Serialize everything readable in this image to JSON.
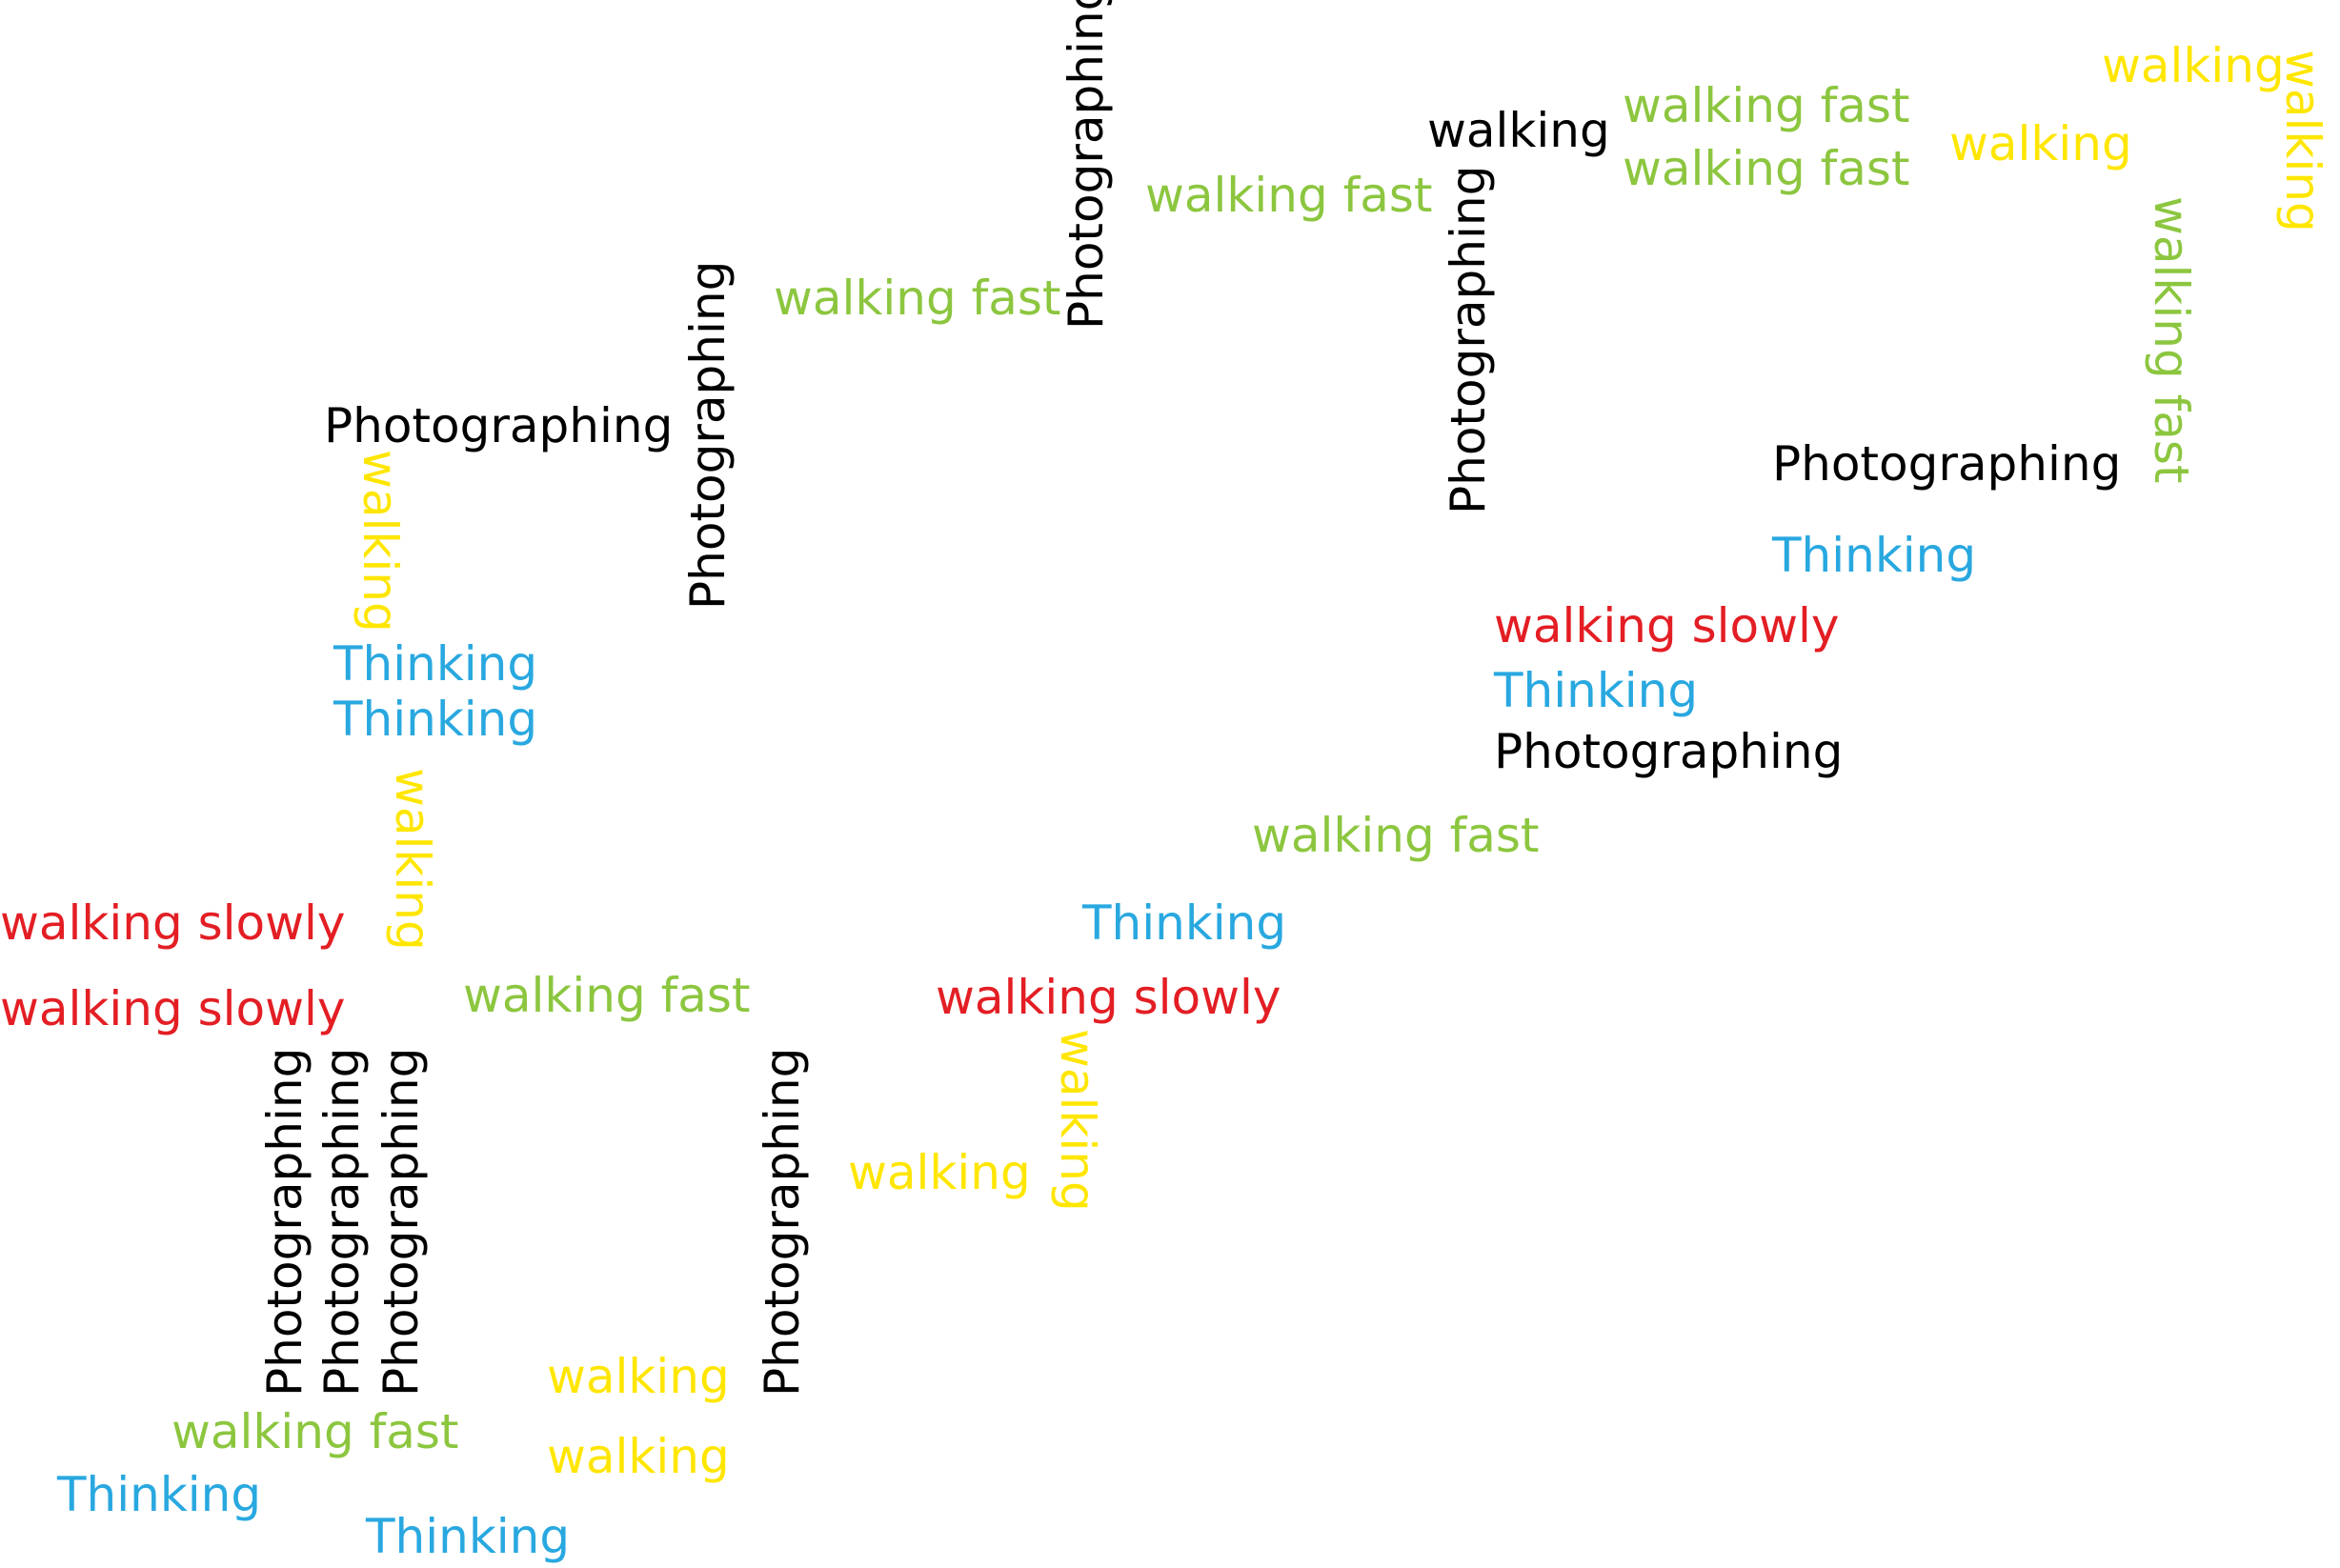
{
  "colors": {
    "black": "#000000",
    "green": "#8cc63f",
    "yellow": "#ffe600",
    "blue": "#29a8e0",
    "red": "#e31e24"
  },
  "words": [
    {
      "text": "Photographing",
      "color": "black"
    },
    {
      "text": "walking fast",
      "color": "green"
    },
    {
      "text": "walking",
      "color": "black"
    },
    {
      "text": "walking fast",
      "color": "green"
    },
    {
      "text": "walking fast",
      "color": "green"
    },
    {
      "text": "walking",
      "color": "yellow"
    },
    {
      "text": "walking",
      "color": "yellow"
    },
    {
      "text": "walking",
      "color": "yellow"
    },
    {
      "text": "Photographing",
      "color": "black"
    },
    {
      "text": "walking fast",
      "color": "green"
    },
    {
      "text": "walking fast",
      "color": "green"
    },
    {
      "text": "Photographing",
      "color": "black"
    },
    {
      "text": "Photographing",
      "color": "black"
    },
    {
      "text": "Photographing",
      "color": "black"
    },
    {
      "text": "walking",
      "color": "yellow"
    },
    {
      "text": "Thinking",
      "color": "blue"
    },
    {
      "text": "Thinking",
      "color": "blue"
    },
    {
      "text": "Thinking",
      "color": "blue"
    },
    {
      "text": "walking slowly",
      "color": "red"
    },
    {
      "text": "Thinking",
      "color": "blue"
    },
    {
      "text": "Photographing",
      "color": "black"
    },
    {
      "text": "walking",
      "color": "yellow"
    },
    {
      "text": "walking fast",
      "color": "green"
    },
    {
      "text": "walking slowly",
      "color": "red"
    },
    {
      "text": "walking slowly",
      "color": "red"
    },
    {
      "text": "walking fast",
      "color": "green"
    },
    {
      "text": "Thinking",
      "color": "blue"
    },
    {
      "text": "walking slowly",
      "color": "red"
    },
    {
      "text": "walking",
      "color": "yellow"
    },
    {
      "text": "Photographing",
      "color": "black"
    },
    {
      "text": "Photographing",
      "color": "black"
    },
    {
      "text": "Photographing",
      "color": "black"
    },
    {
      "text": "Photographing",
      "color": "black"
    },
    {
      "text": "walking",
      "color": "yellow"
    },
    {
      "text": "walking",
      "color": "yellow"
    },
    {
      "text": "walking",
      "color": "yellow"
    },
    {
      "text": "walking fast",
      "color": "green"
    },
    {
      "text": "Thinking",
      "color": "blue"
    },
    {
      "text": "Thinking",
      "color": "blue"
    }
  ]
}
